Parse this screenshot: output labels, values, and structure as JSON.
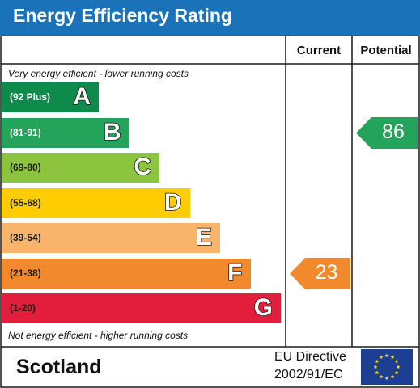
{
  "header": {
    "title": "Energy Efficiency Rating"
  },
  "columns": {
    "current": "Current",
    "potential": "Potential"
  },
  "captions": {
    "top": "Very energy efficient - lower running costs",
    "bottom": "Not energy efficient - higher running costs"
  },
  "footer": {
    "region": "Scotland",
    "directive_line1": "EU Directive",
    "directive_line2": "2002/91/EC"
  },
  "colors": {
    "header": "#1a73b8",
    "arrow_current": "#f28a2d",
    "arrow_potential": "#23a45a"
  },
  "chart_data": {
    "type": "bar",
    "title": "Energy Efficiency Rating",
    "bands": [
      {
        "letter": "A",
        "range": "(92 Plus)",
        "color": "#0e8a4a",
        "range_color": "#ffffff"
      },
      {
        "letter": "B",
        "range": "(81-91)",
        "color": "#23a45a",
        "range_color": "#ffffff"
      },
      {
        "letter": "C",
        "range": "(69-80)",
        "color": "#8cc43f",
        "range_color": "#1a1a1a"
      },
      {
        "letter": "D",
        "range": "(55-68)",
        "color": "#ffcc00",
        "range_color": "#1a1a1a"
      },
      {
        "letter": "E",
        "range": "(39-54)",
        "color": "#f9b46c",
        "range_color": "#1a1a1a"
      },
      {
        "letter": "F",
        "range": "(21-38)",
        "color": "#f28a2d",
        "range_color": "#1a1a1a"
      },
      {
        "letter": "G",
        "range": "(1-20)",
        "color": "#e31d3c",
        "range_color": "#1a1a1a"
      }
    ],
    "current": {
      "value": 23,
      "band": "F"
    },
    "potential": {
      "value": 86,
      "band": "B"
    }
  }
}
